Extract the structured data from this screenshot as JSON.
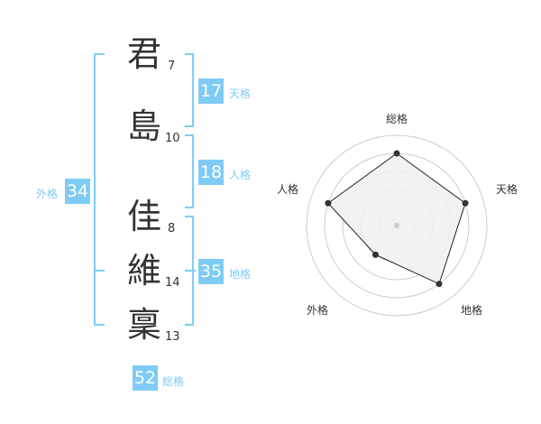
{
  "name": {
    "chars": [
      {
        "char": "君",
        "strokes": "7"
      },
      {
        "char": "島",
        "strokes": "10"
      },
      {
        "char": "佳",
        "strokes": "8"
      },
      {
        "char": "維",
        "strokes": "14"
      },
      {
        "char": "稟",
        "strokes": "13"
      }
    ]
  },
  "fortunes": {
    "tenkaku": {
      "label": "天格",
      "value": "17"
    },
    "jinkaku": {
      "label": "人格",
      "value": "18"
    },
    "chikaku": {
      "label": "地格",
      "value": "35"
    },
    "gaikaku": {
      "label": "外格",
      "value": "34"
    },
    "soukaku": {
      "label": "総格",
      "value": "52"
    }
  },
  "colors": {
    "accent": "#7fcbf6",
    "polygon_fill": "#f0f0f0",
    "ring": "#cccccc",
    "point": "#333333"
  },
  "chart_data": {
    "type": "radar",
    "axes": [
      "総格",
      "天格",
      "地格",
      "外格",
      "人格"
    ],
    "values": [
      4,
      4,
      4,
      2,
      4
    ],
    "range": [
      0,
      5
    ],
    "rings": 5
  }
}
